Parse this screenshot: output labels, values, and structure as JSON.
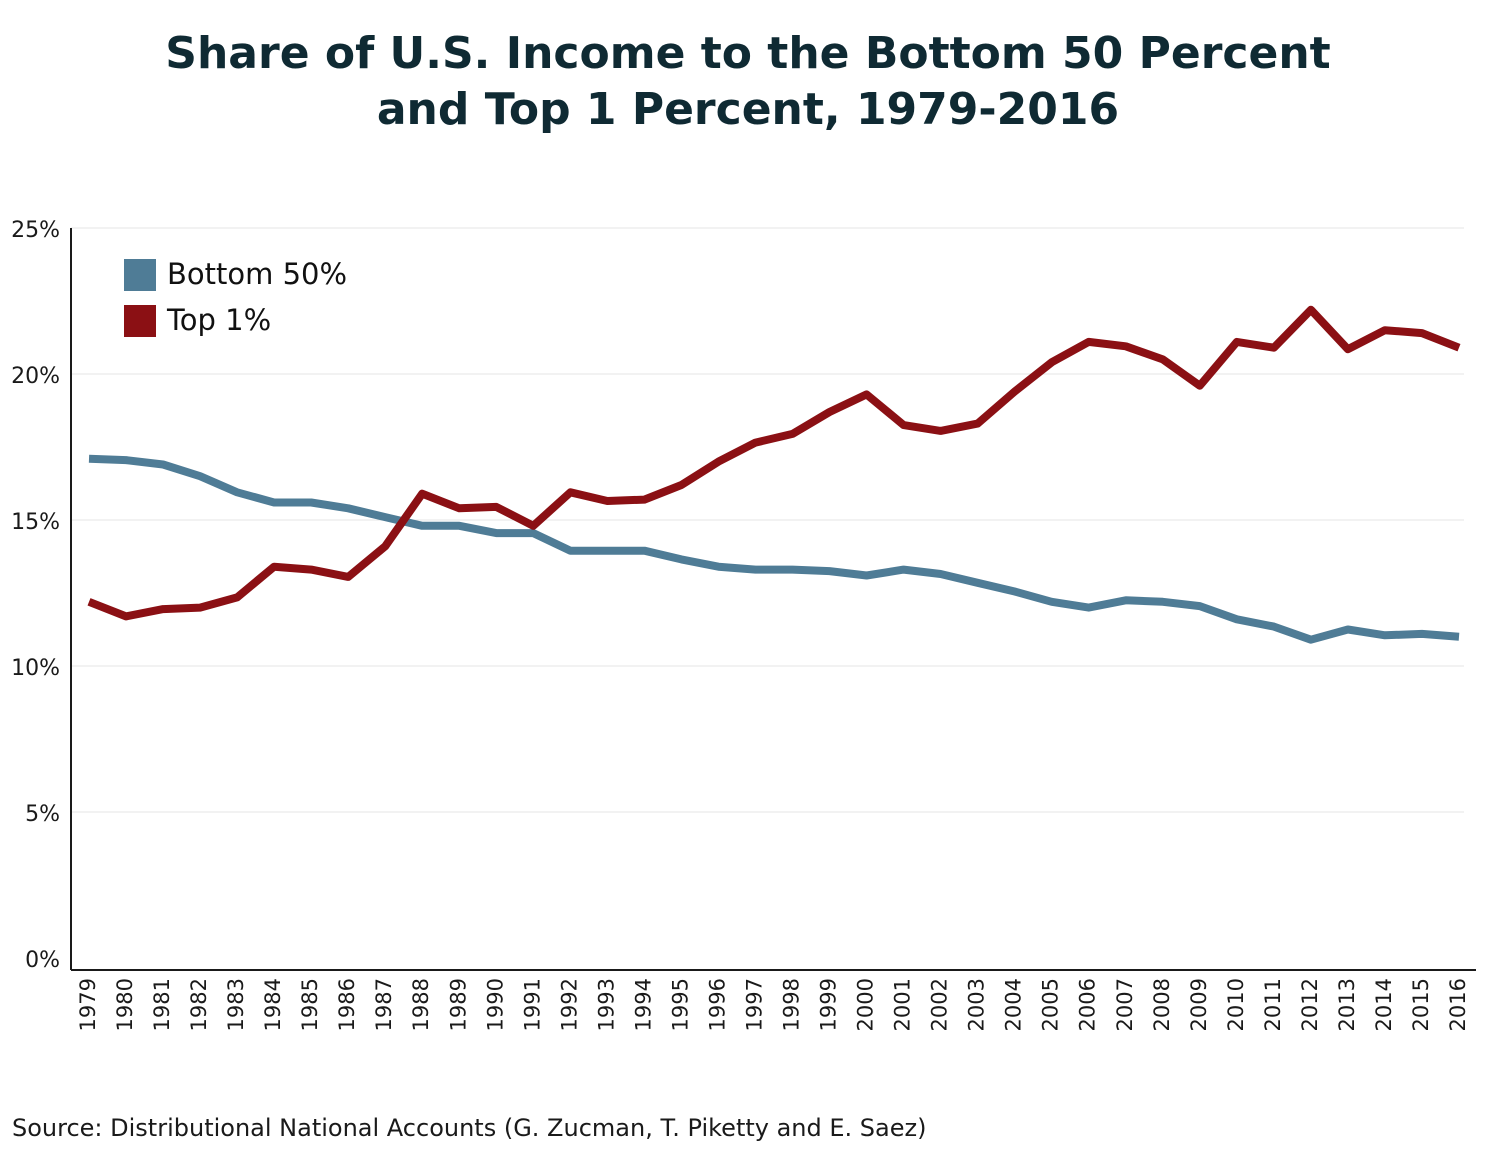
{
  "chart_data": {
    "type": "line",
    "title_line1": "Share of U.S. Income to the Bottom 50 Percent",
    "title_line2": "and Top 1 Percent, 1979-2016",
    "xlabel": "",
    "ylabel": "",
    "ylim": [
      0,
      25
    ],
    "yticks": [
      "0%",
      "5%",
      "10%",
      "15%",
      "20%",
      "25%"
    ],
    "ytick_values": [
      0,
      5,
      10,
      15,
      20,
      25
    ],
    "grid": true,
    "legend_position": "top-left",
    "x": [
      1979,
      1980,
      1981,
      1982,
      1983,
      1984,
      1985,
      1986,
      1987,
      1988,
      1989,
      1990,
      1991,
      1992,
      1993,
      1994,
      1995,
      1996,
      1997,
      1998,
      1999,
      2000,
      2001,
      2002,
      2003,
      2004,
      2005,
      2006,
      2007,
      2008,
      2009,
      2010,
      2011,
      2012,
      2013,
      2014,
      2015,
      2016
    ],
    "series": [
      {
        "name": "Bottom 50%",
        "color": "#4f7c96",
        "values": [
          17.1,
          17.05,
          16.9,
          16.5,
          15.95,
          15.6,
          15.6,
          15.4,
          15.1,
          14.8,
          14.8,
          14.55,
          14.55,
          13.95,
          13.95,
          13.95,
          13.65,
          13.4,
          13.3,
          13.3,
          13.25,
          13.1,
          13.3,
          13.15,
          12.85,
          12.55,
          12.2,
          12.0,
          12.25,
          12.2,
          12.05,
          11.6,
          11.35,
          10.9,
          11.25,
          11.05,
          11.1,
          11.0
        ]
      },
      {
        "name": "Top 1%",
        "color": "#8b1014",
        "values": [
          12.2,
          11.7,
          11.95,
          12.0,
          12.35,
          13.4,
          13.3,
          13.05,
          14.1,
          15.9,
          15.4,
          15.45,
          14.8,
          15.95,
          15.65,
          15.7,
          16.2,
          17.0,
          17.65,
          17.95,
          18.7,
          19.3,
          18.25,
          18.05,
          18.3,
          19.4,
          20.4,
          21.1,
          20.95,
          20.5,
          19.6,
          21.1,
          20.9,
          22.2,
          20.85,
          21.5,
          21.4,
          20.9
        ]
      }
    ]
  },
  "source_note": "Source: Distributional National Accounts (G. Zucman, T. Piketty and E. Saez)",
  "colors": {
    "title": "#0f2a33",
    "grid": "#e6e6e6",
    "axis": "#1a1a1a"
  }
}
